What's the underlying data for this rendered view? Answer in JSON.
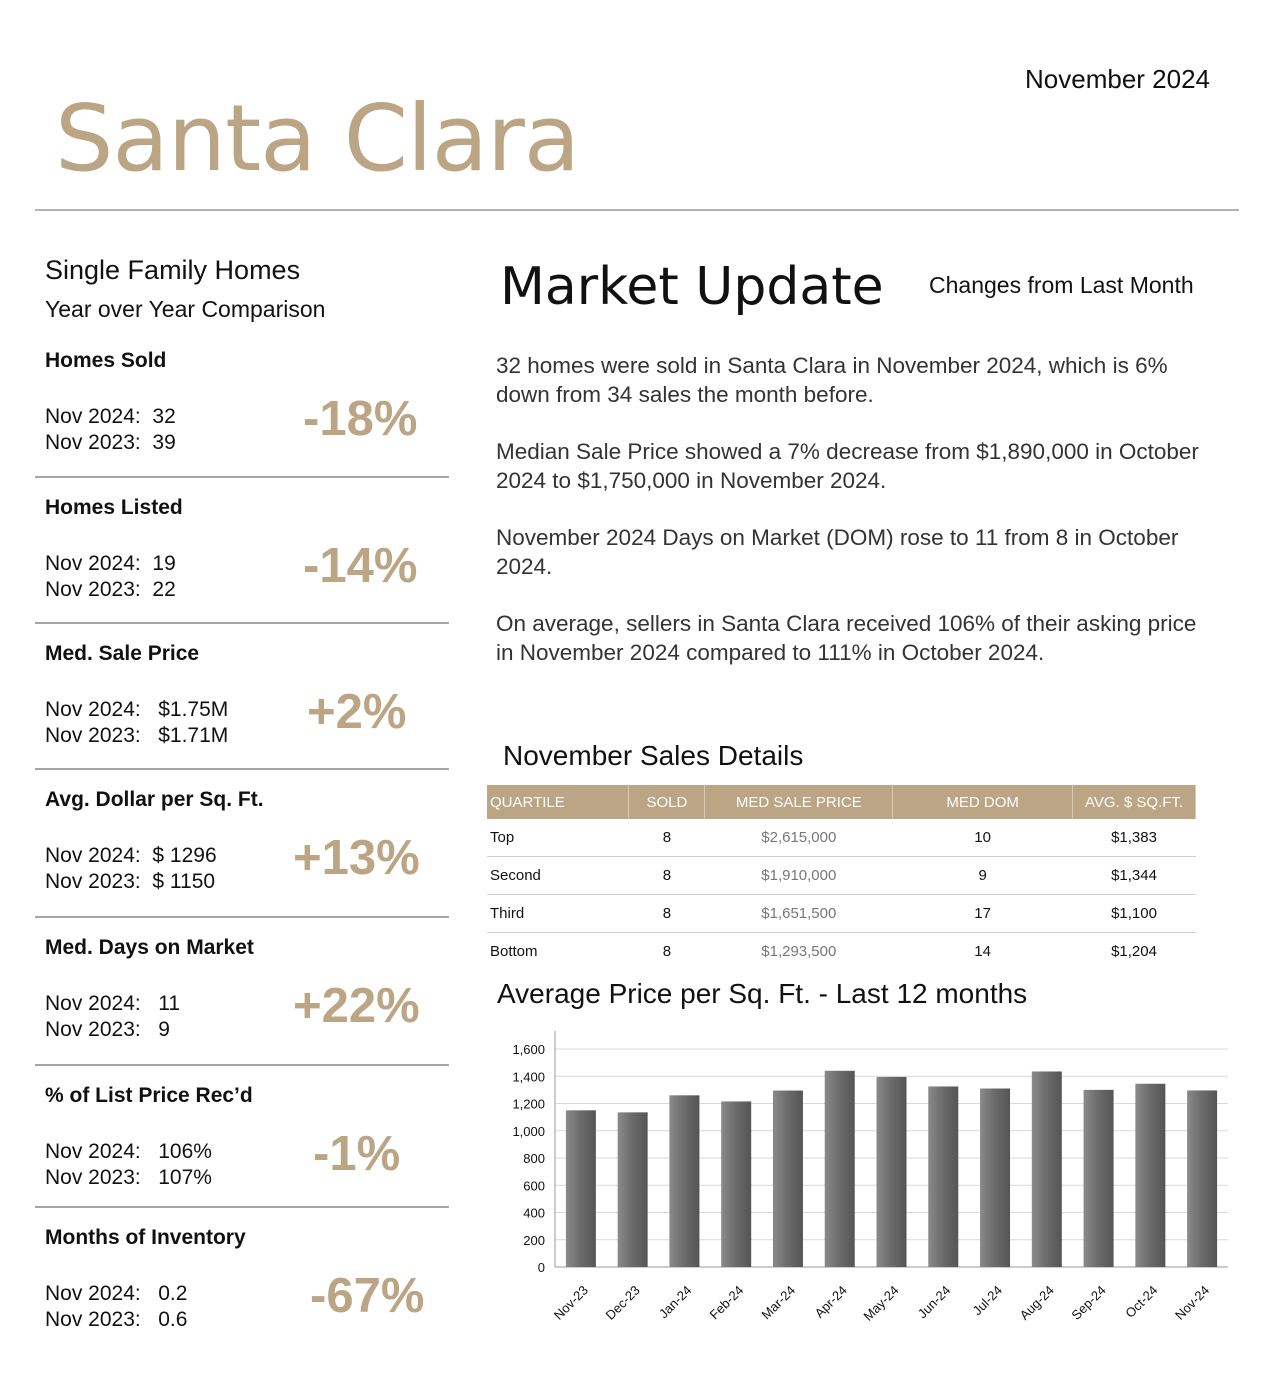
{
  "header": {
    "date": "November 2024",
    "city": "Santa Clara"
  },
  "left": {
    "title": "Single Family Homes",
    "subtitle": "Year over Year Comparison",
    "metrics": [
      {
        "label": "Homes Sold",
        "row1": "Nov 2024:  32",
        "row2": "Nov 2023:  39",
        "pct": "-18%"
      },
      {
        "label": "Homes Listed",
        "row1": "Nov 2024:  19",
        "row2": "Nov 2023:  22",
        "pct": "-14%"
      },
      {
        "label": "Med. Sale Price",
        "row1": "Nov 2024:   $1.75M",
        "row2": "Nov 2023:   $1.71M",
        "pct": "+2%"
      },
      {
        "label": "Avg. Dollar per Sq. Ft.",
        "row1": "Nov 2024:  $ 1296",
        "row2": "Nov 2023:  $ 1150",
        "pct": "+13%"
      },
      {
        "label": "Med. Days on Market",
        "row1": "Nov 2024:   11",
        "row2": "Nov 2023:   9",
        "pct": "+22%"
      },
      {
        "label": "% of List Price Rec’d",
        "row1": "Nov 2024:   106%",
        "row2": "Nov 2023:   107%",
        "pct": "-1%"
      },
      {
        "label": "Months of Inventory",
        "row1": "Nov 2024:   0.2",
        "row2": "Nov 2023:   0.6",
        "pct": "-67%"
      }
    ]
  },
  "market_update": {
    "title": "Market Update",
    "changes_label": "Changes from Last Month",
    "paragraphs": [
      "32 homes were sold in Santa Clara in November 2024, which is 6% down from 34 sales the month before.",
      "Median Sale Price showed a 7% decrease from $1,890,000 in October 2024 to $1,750,000 in November 2024.",
      "November 2024 Days on Market (DOM) rose to 11 from 8 in October 2024.",
      "On average, sellers in Santa Clara received 106% of their asking price in November 2024 compared to 111% in October 2024."
    ]
  },
  "sales_details": {
    "title": "November Sales Details",
    "headers": [
      "QUARTILE",
      "SOLD",
      "MED SALE PRICE",
      "MED DOM",
      "AVG. $ SQ.FT."
    ],
    "rows": [
      [
        "Top",
        "8",
        "$2,615,000",
        "10",
        "$1,383"
      ],
      [
        "Second",
        "8",
        "$1,910,000",
        "9",
        "$1,344"
      ],
      [
        "Third",
        "8",
        "$1,651,500",
        "17",
        "$1,100"
      ],
      [
        "Bottom",
        "8",
        "$1,293,500",
        "14",
        "$1,204"
      ]
    ]
  },
  "chart_title": "Average Price per Sq. Ft. - Last 12 months",
  "chart_data": {
    "type": "bar",
    "categories": [
      "Nov-23",
      "Dec-23",
      "Jan-24",
      "Feb-24",
      "Mar-24",
      "Apr-24",
      "May-24",
      "Jun-24",
      "Jul-24",
      "Aug-24",
      "Sep-24",
      "Oct-24",
      "Nov-24"
    ],
    "values": [
      1150,
      1135,
      1260,
      1215,
      1295,
      1440,
      1395,
      1325,
      1310,
      1435,
      1300,
      1345,
      1296
    ],
    "yticks": [
      0,
      200,
      400,
      600,
      800,
      1000,
      1200,
      1400,
      1600
    ],
    "ytick_labels": [
      "0",
      "200",
      "400",
      "600",
      "800",
      "1,000",
      "1,200",
      "1,400",
      "1,600"
    ],
    "ylim": [
      0,
      1600
    ],
    "grid": true,
    "bar_color": "#6b6b6b"
  }
}
